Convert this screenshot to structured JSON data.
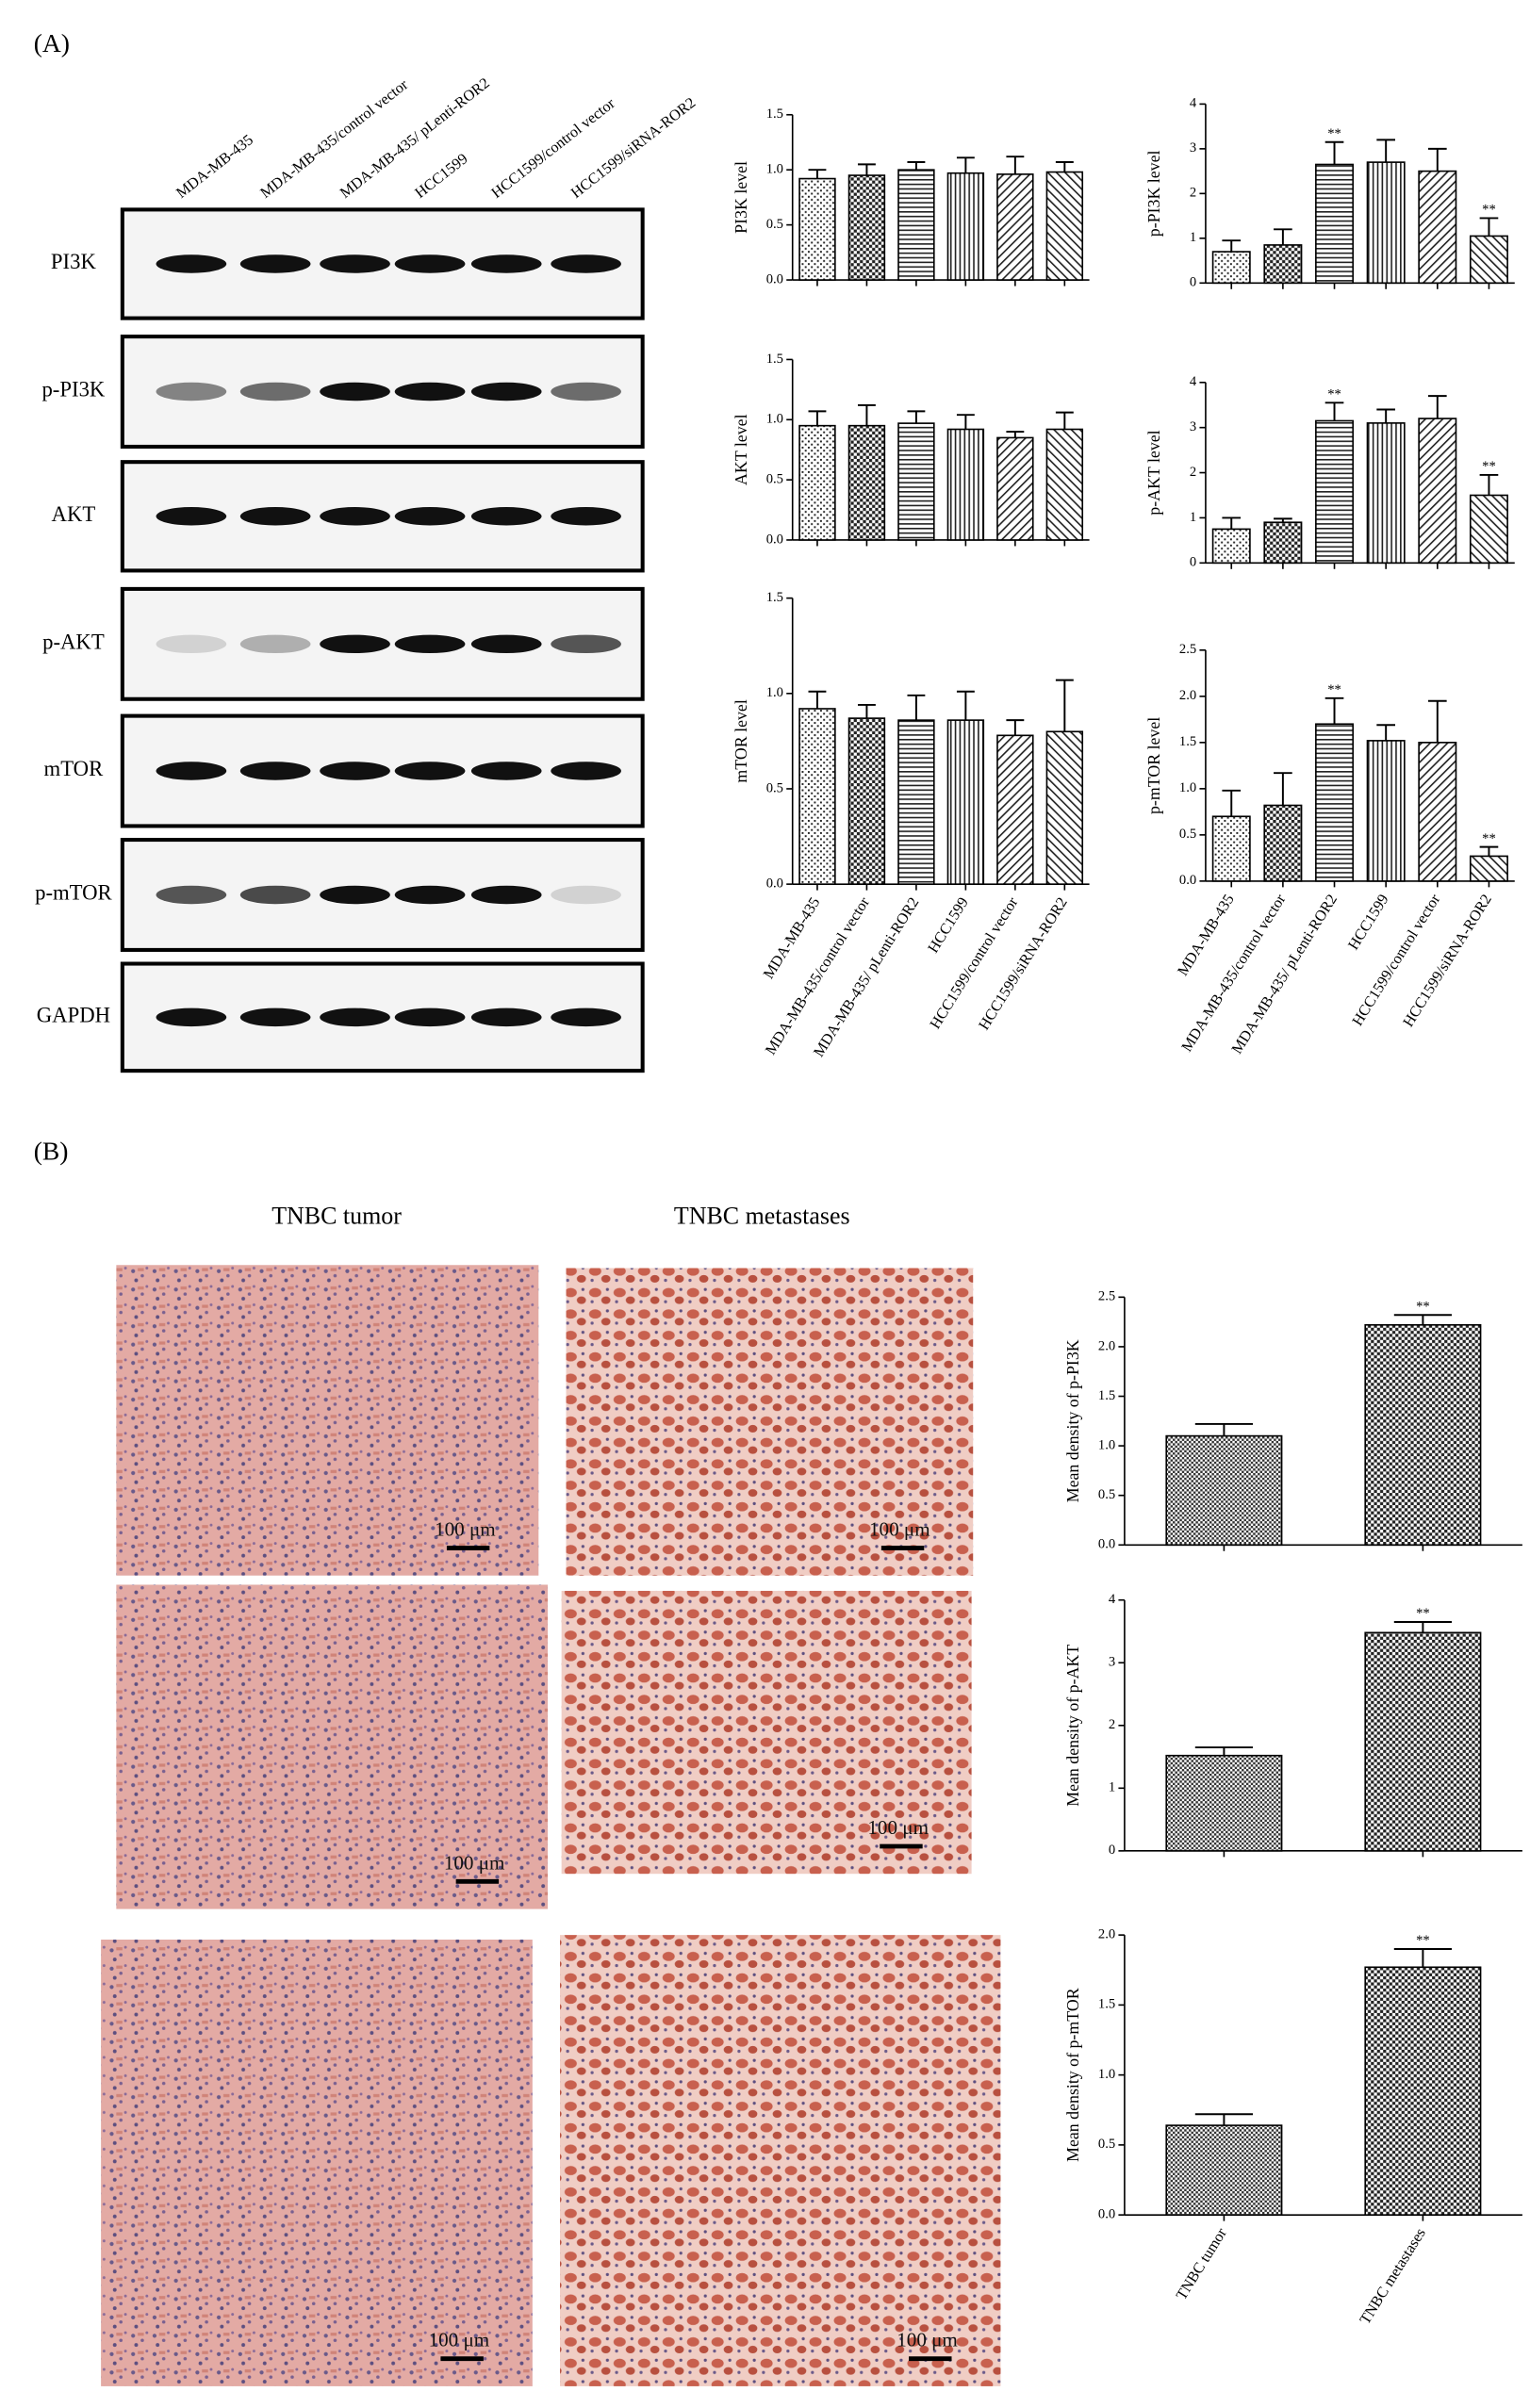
{
  "panels": {
    "a": "(A)",
    "b": "(B)"
  },
  "blot": {
    "lanes": [
      "MDA-MB-435",
      "MDA-MB-435/control vector",
      "MDA-MB-435/ pLenti-ROR2",
      "HCC1599",
      "HCC1599/control vector",
      "HCC1599/siRNA-ROR2"
    ],
    "rows": [
      "PI3K",
      "p-PI3K",
      "AKT",
      "p-AKT",
      "mTOR",
      "p-mTOR",
      "GAPDH"
    ]
  },
  "histology": {
    "columns": [
      "TNBC tumor",
      "TNBC metastases"
    ],
    "scale_bars": [
      "100 μm",
      "100 μm",
      "100 μm",
      "100 μm",
      "100 μm",
      "100 μm"
    ]
  },
  "chart_data": [
    {
      "type": "bar",
      "y_label": "PI3K level",
      "values": [
        0.92,
        0.95,
        1.0,
        0.97,
        0.96,
        0.98
      ],
      "errors": [
        0.08,
        0.1,
        0.07,
        0.14,
        0.16,
        0.09
      ],
      "ylim": [
        0,
        1.5
      ],
      "yticks": [
        {
          "value": 0,
          "label": "0.0"
        },
        {
          "value": 0.5,
          "label": "0.5"
        },
        {
          "value": 1,
          "label": "1.0"
        },
        {
          "value": 1.5,
          "label": "1.5"
        }
      ],
      "patterns": [
        "speck",
        "checker",
        "hlines",
        "vlines",
        "diagd",
        "diagu"
      ],
      "annotations": []
    },
    {
      "type": "bar",
      "y_label": "p-PI3K level",
      "values": [
        0.7,
        0.85,
        2.65,
        2.7,
        2.5,
        1.05
      ],
      "errors": [
        0.25,
        0.35,
        0.5,
        0.5,
        0.5,
        0.4
      ],
      "ylim": [
        0,
        4
      ],
      "yticks": [
        0,
        1,
        2,
        3,
        4
      ],
      "patterns": [
        "speck",
        "checker",
        "hlines",
        "vlines",
        "diagd",
        "diagu"
      ],
      "annotations": [
        {
          "category_index": 2,
          "text": "**"
        },
        {
          "category_index": 5,
          "text": "**"
        }
      ]
    },
    {
      "type": "bar",
      "y_label": "AKT level",
      "values": [
        0.95,
        0.95,
        0.97,
        0.92,
        0.85,
        0.92
      ],
      "errors": [
        0.12,
        0.17,
        0.1,
        0.12,
        0.05,
        0.14
      ],
      "ylim": [
        0,
        1.5
      ],
      "yticks": [
        {
          "value": 0,
          "label": "0.0"
        },
        {
          "value": 0.5,
          "label": "0.5"
        },
        {
          "value": 1,
          "label": "1.0"
        },
        {
          "value": 1.5,
          "label": "1.5"
        }
      ],
      "patterns": [
        "speck",
        "checker",
        "hlines",
        "vlines",
        "diagd",
        "diagu"
      ],
      "annotations": []
    },
    {
      "type": "bar",
      "y_label": "p-AKT level",
      "values": [
        0.75,
        0.9,
        3.15,
        3.1,
        3.2,
        1.5
      ],
      "errors": [
        0.25,
        0.08,
        0.4,
        0.3,
        0.5,
        0.45
      ],
      "ylim": [
        0,
        4
      ],
      "yticks": [
        0,
        1,
        2,
        3,
        4
      ],
      "patterns": [
        "speck",
        "checker",
        "hlines",
        "vlines",
        "diagd",
        "diagu"
      ],
      "annotations": [
        {
          "category_index": 2,
          "text": "**"
        },
        {
          "category_index": 5,
          "text": "**"
        }
      ]
    },
    {
      "type": "bar",
      "y_label": "mTOR level",
      "values": [
        0.92,
        0.87,
        0.86,
        0.86,
        0.78,
        0.8
      ],
      "errors": [
        0.09,
        0.07,
        0.13,
        0.15,
        0.08,
        0.27
      ],
      "ylim": [
        0,
        1.5
      ],
      "yticks": [
        {
          "value": 0,
          "label": "0.0"
        },
        {
          "value": 0.5,
          "label": "0.5"
        },
        {
          "value": 1,
          "label": "1.0"
        },
        {
          "value": 1.5,
          "label": "1.5"
        }
      ],
      "patterns": [
        "speck",
        "checker",
        "hlines",
        "vlines",
        "diagd",
        "diagu"
      ],
      "annotations": [],
      "categories": [
        "MDA-MB-435",
        "MDA-MB-435/control vector",
        "MDA-MB-435/ pLenti-ROR2",
        "HCC1599",
        "HCC1599/control vector",
        "HCC1599/siRNA-ROR2"
      ]
    },
    {
      "type": "bar",
      "y_label": "p-mTOR level",
      "values": [
        0.7,
        0.82,
        1.7,
        1.52,
        1.5,
        0.27
      ],
      "errors": [
        0.28,
        0.35,
        0.28,
        0.17,
        0.45,
        0.1
      ],
      "ylim": [
        0,
        2.5
      ],
      "yticks": [
        {
          "value": 0,
          "label": "0.0"
        },
        {
          "value": 0.5,
          "label": "0.5"
        },
        {
          "value": 1,
          "label": "1.0"
        },
        {
          "value": 1.5,
          "label": "1.5"
        },
        {
          "value": 2,
          "label": "2.0"
        },
        {
          "value": 2.5,
          "label": "2.5"
        }
      ],
      "patterns": [
        "speck",
        "checker",
        "hlines",
        "vlines",
        "diagd",
        "diagu"
      ],
      "annotations": [
        {
          "category_index": 2,
          "text": "**"
        },
        {
          "category_index": 5,
          "text": "**"
        }
      ],
      "categories": [
        "MDA-MB-435",
        "MDA-MB-435/control vector",
        "MDA-MB-435/ pLenti-ROR2",
        "HCC1599",
        "HCC1599/control vector",
        "HCC1599/siRNA-ROR2"
      ]
    },
    {
      "type": "bar",
      "y_label": "Mean density of p-PI3K",
      "values": [
        1.1,
        2.22
      ],
      "errors": [
        0.12,
        0.1
      ],
      "ylim": [
        0,
        2.5
      ],
      "yticks": [
        {
          "value": 0,
          "label": "0.0"
        },
        {
          "value": 0.5,
          "label": "0.5"
        },
        {
          "value": 1,
          "label": "1.0"
        },
        {
          "value": 1.5,
          "label": "1.5"
        },
        {
          "value": 2,
          "label": "2.0"
        },
        {
          "value": 2.5,
          "label": "2.5"
        }
      ],
      "patterns": [
        "fine",
        "checker"
      ],
      "annotations": [
        {
          "category_index": 1,
          "text": "**"
        }
      ]
    },
    {
      "type": "bar",
      "y_label": "Mean density of p-AKT",
      "values": [
        1.52,
        3.48
      ],
      "errors": [
        0.13,
        0.17
      ],
      "ylim": [
        0,
        4
      ],
      "yticks": [
        0,
        1,
        2,
        3,
        4
      ],
      "patterns": [
        "fine",
        "checker"
      ],
      "annotations": [
        {
          "category_index": 1,
          "text": "**"
        }
      ]
    },
    {
      "type": "bar",
      "y_label": "Mean density of p-mTOR",
      "values": [
        0.64,
        1.77
      ],
      "errors": [
        0.08,
        0.13
      ],
      "ylim": [
        0,
        2
      ],
      "yticks": [
        {
          "value": 0,
          "label": "0.0"
        },
        {
          "value": 0.5,
          "label": "0.5"
        },
        {
          "value": 1,
          "label": "1.0"
        },
        {
          "value": 1.5,
          "label": "1.5"
        },
        {
          "value": 2,
          "label": "2.0"
        }
      ],
      "patterns": [
        "fine",
        "checker"
      ],
      "annotations": [
        {
          "category_index": 1,
          "text": "**"
        }
      ],
      "categories": [
        "TNBC tumor",
        "TNBC metastases"
      ]
    }
  ]
}
